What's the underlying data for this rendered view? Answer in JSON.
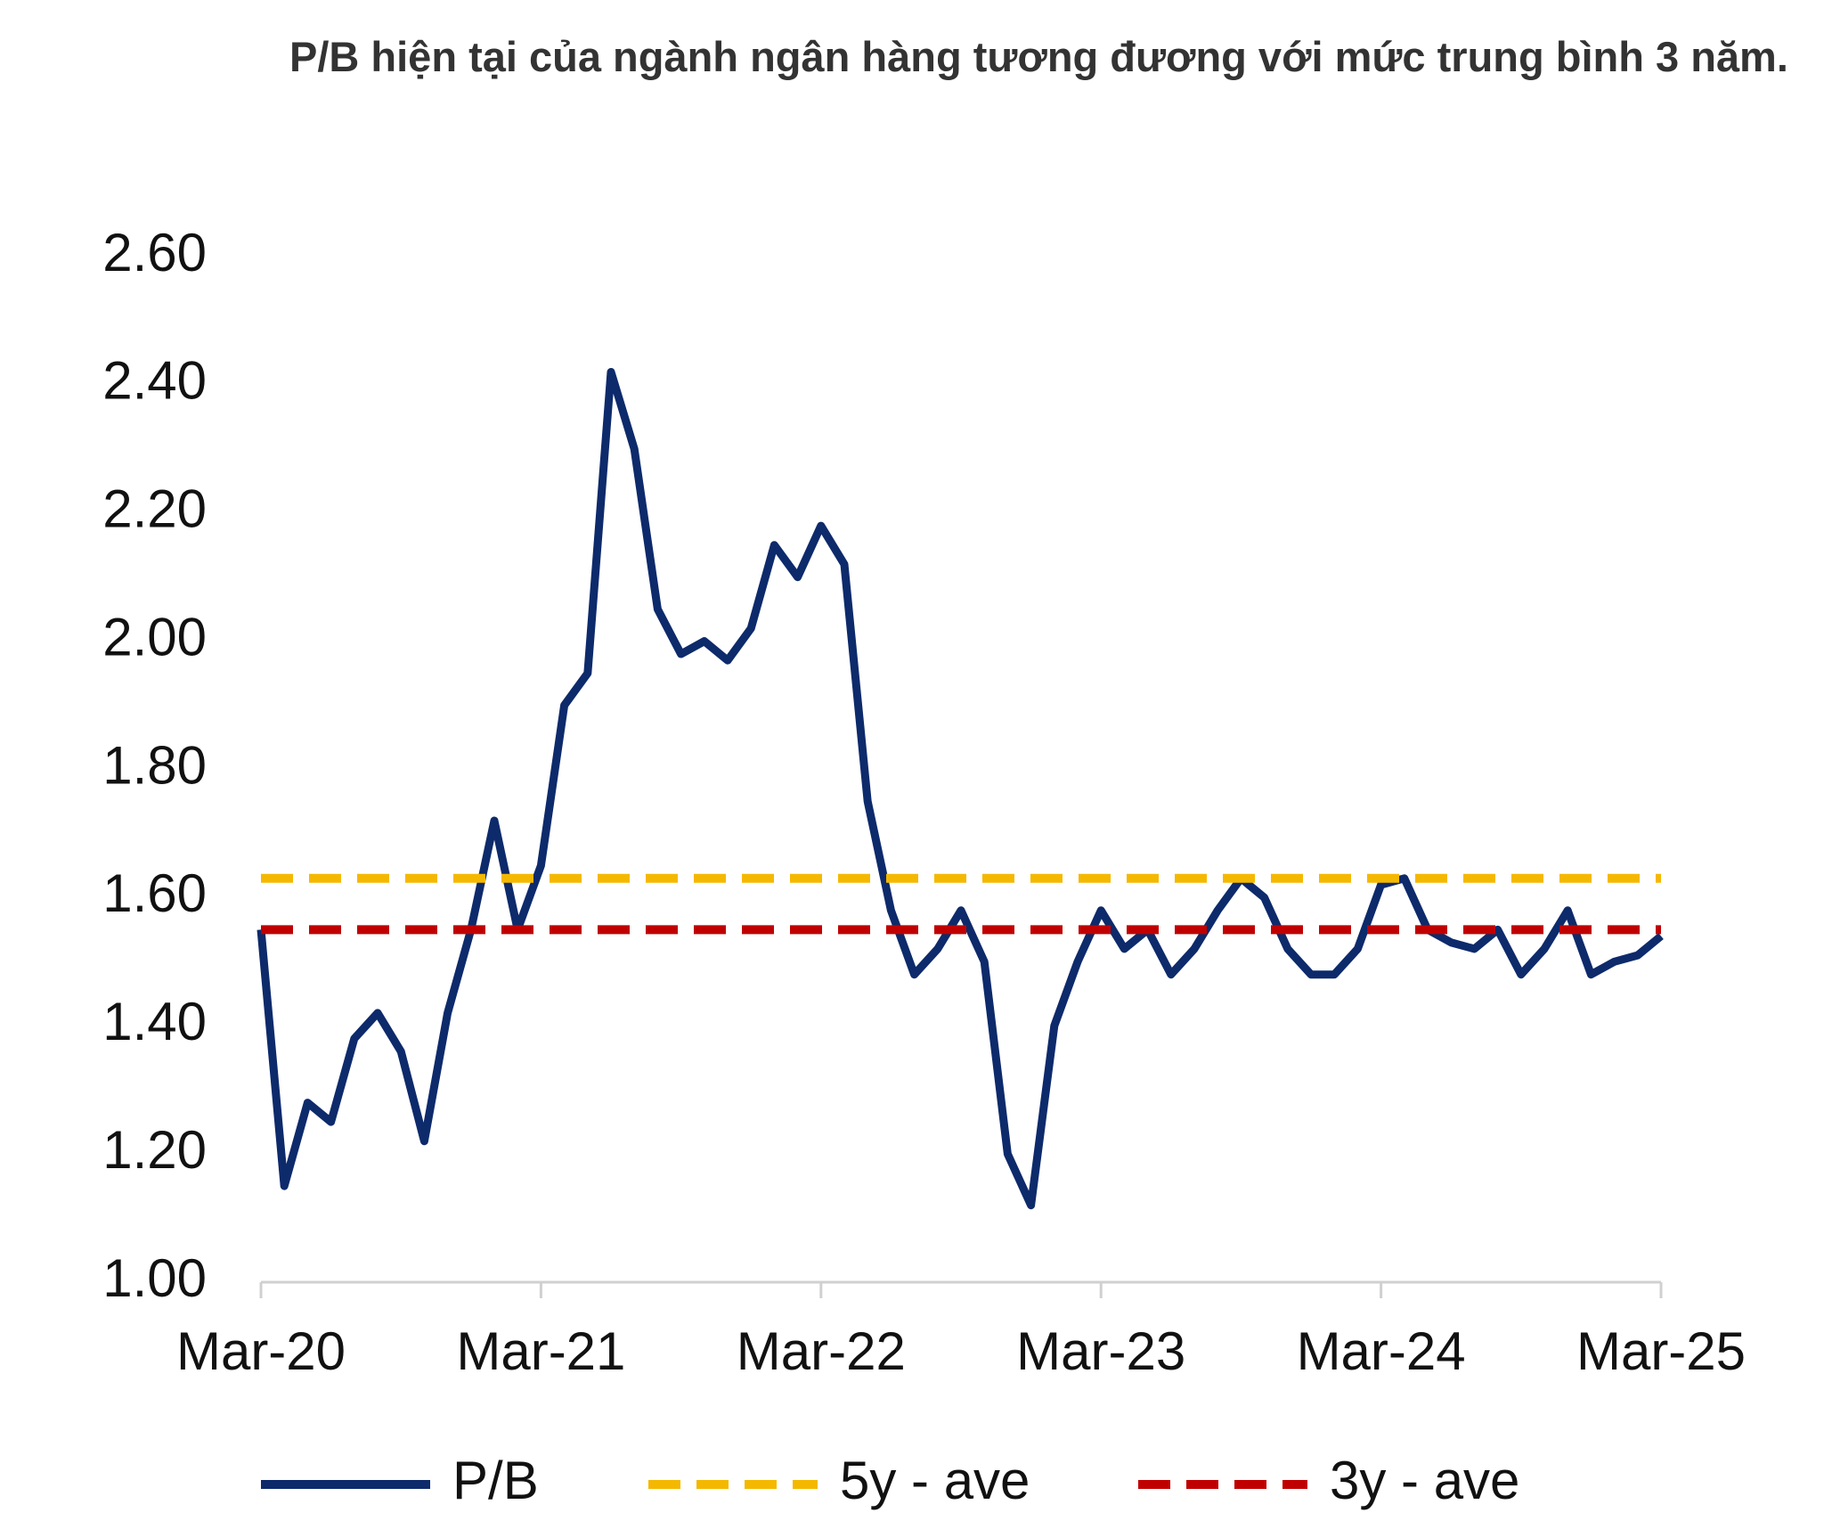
{
  "chart_data": {
    "type": "line",
    "title": "P/B hiện tại của ngành ngân hàng tương đương với mức trung bình 3 năm.",
    "x": [
      "Mar-20",
      "Apr-20",
      "May-20",
      "Jun-20",
      "Jul-20",
      "Aug-20",
      "Sep-20",
      "Oct-20",
      "Nov-20",
      "Dec-20",
      "Jan-21",
      "Feb-21",
      "Mar-21",
      "Apr-21",
      "May-21",
      "Jun-21",
      "Jul-21",
      "Aug-21",
      "Sep-21",
      "Oct-21",
      "Nov-21",
      "Dec-21",
      "Jan-22",
      "Feb-22",
      "Mar-22",
      "Apr-22",
      "May-22",
      "Jun-22",
      "Jul-22",
      "Aug-22",
      "Sep-22",
      "Oct-22",
      "Nov-22",
      "Dec-22",
      "Jan-23",
      "Feb-23",
      "Mar-23",
      "Apr-23",
      "May-23",
      "Jun-23",
      "Jul-23",
      "Aug-23",
      "Sep-23",
      "Oct-23",
      "Nov-23",
      "Dec-23",
      "Jan-24",
      "Feb-24",
      "Mar-24",
      "Apr-24",
      "May-24",
      "Jun-24",
      "Jul-24",
      "Aug-24",
      "Sep-24",
      "Oct-24",
      "Nov-24",
      "Dec-24",
      "Jan-25",
      "Feb-25",
      "Mar-25"
    ],
    "xticks": [
      "Mar-20",
      "Mar-21",
      "Mar-22",
      "Mar-23",
      "Mar-24",
      "Mar-25"
    ],
    "series": [
      {
        "name": "P/B",
        "color": "#0d2a6b",
        "values": [
          1.55,
          1.15,
          1.28,
          1.25,
          1.38,
          1.42,
          1.36,
          1.22,
          1.42,
          1.55,
          1.72,
          1.55,
          1.65,
          1.9,
          1.95,
          2.42,
          2.3,
          2.05,
          1.98,
          2.0,
          1.97,
          2.02,
          2.15,
          2.1,
          2.18,
          2.12,
          1.75,
          1.58,
          1.48,
          1.52,
          1.58,
          1.5,
          1.2,
          1.12,
          1.4,
          1.5,
          1.58,
          1.52,
          1.55,
          1.48,
          1.52,
          1.58,
          1.63,
          1.6,
          1.52,
          1.48,
          1.48,
          1.52,
          1.62,
          1.63,
          1.55,
          1.53,
          1.52,
          1.55,
          1.48,
          1.52,
          1.58,
          1.48,
          1.5,
          1.51,
          1.54
        ]
      },
      {
        "name": "5y - ave",
        "color": "#f5b800",
        "value": 1.63,
        "dashed": true
      },
      {
        "name": "3y - ave",
        "color": "#c00000",
        "value": 1.55,
        "dashed": true
      }
    ],
    "ylim": [
      1.0,
      2.6
    ],
    "yticks": [
      {
        "value": 1.0,
        "label": "1.00"
      },
      {
        "value": 1.2,
        "label": "1.20"
      },
      {
        "value": 1.4,
        "label": "1.40"
      },
      {
        "value": 1.6,
        "label": "1.60"
      },
      {
        "value": 1.8,
        "label": "1.80"
      },
      {
        "value": 2.0,
        "label": "2.00"
      },
      {
        "value": 2.2,
        "label": "2.20"
      },
      {
        "value": 2.4,
        "label": "2.40"
      },
      {
        "value": 2.6,
        "label": "2.60"
      }
    ],
    "legend": "bottom"
  }
}
